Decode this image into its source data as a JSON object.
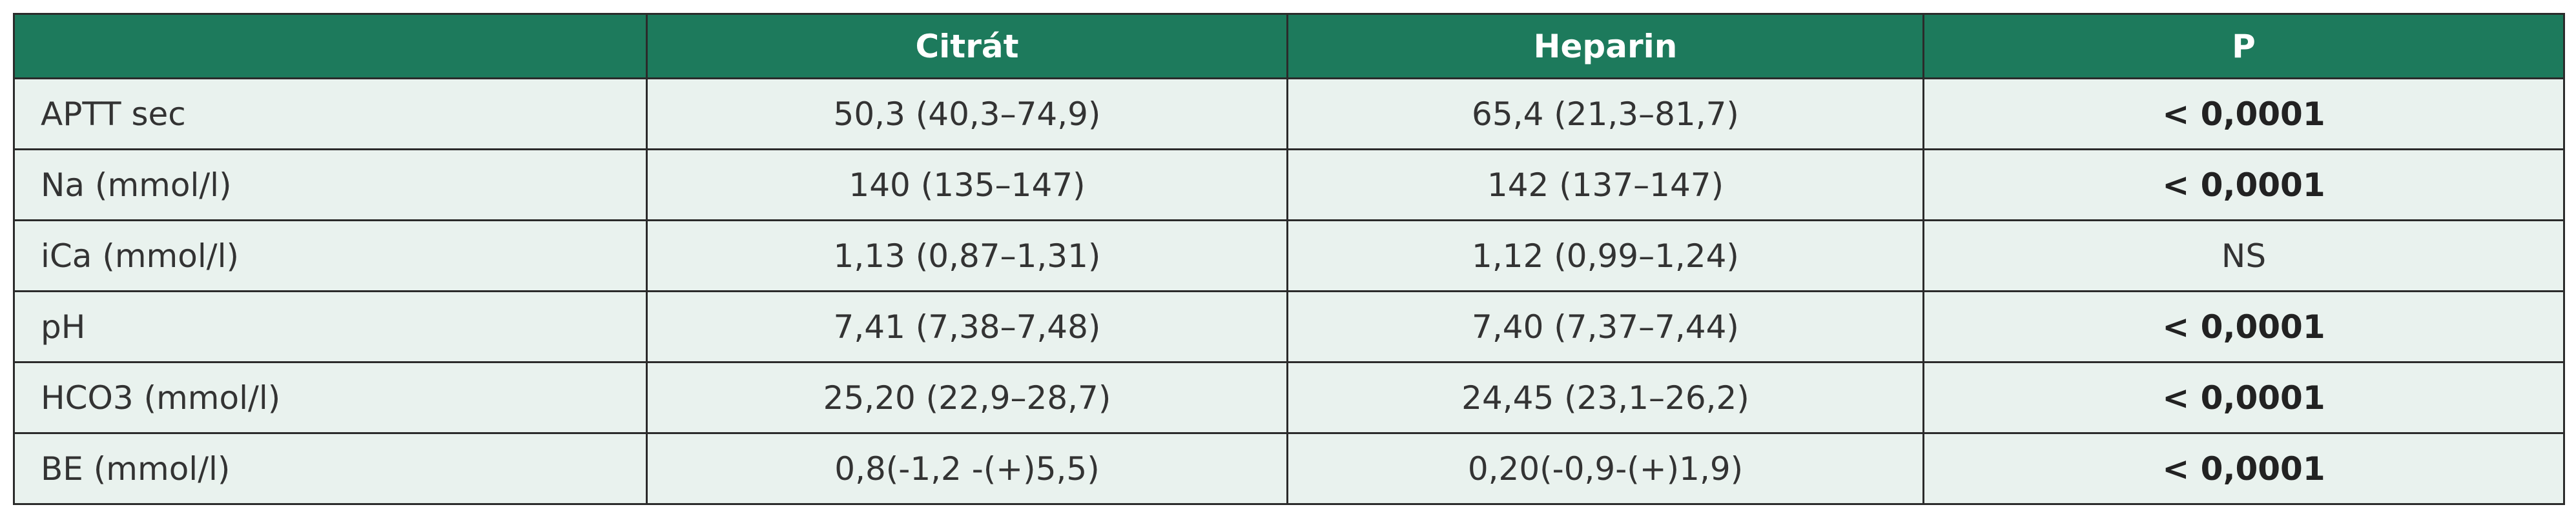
{
  "table": {
    "header": [
      "Citrát",
      "Heparin",
      "P"
    ],
    "rows": [
      [
        "APTT sec",
        "50,3 (40,3–74,9)",
        "65,4 (21,3–81,7)",
        "< 0,0001"
      ],
      [
        "Na (mmol/l)",
        "140 (135–147)",
        "142 (137–147)",
        "< 0,0001"
      ],
      [
        "iCa (mmol/l)",
        "1,13 (0,87–1,31)",
        "1,12 (0,99–1,24)",
        "NS"
      ],
      [
        "pH",
        "7,41 (7,38–7,48)",
        "7,40 (7,37–7,44)",
        "< 0,0001"
      ],
      [
        "HCO3 (mmol/l)",
        "25,20 (22,9–28,7)",
        "24,45 (23,1–26,2)",
        "< 0,0001"
      ],
      [
        "BE (mmol/l)",
        "0,8(-1,2 -(+)5,5)",
        "0,20(-0,9-(+)1,9)",
        "< 0,0001"
      ]
    ]
  }
}
